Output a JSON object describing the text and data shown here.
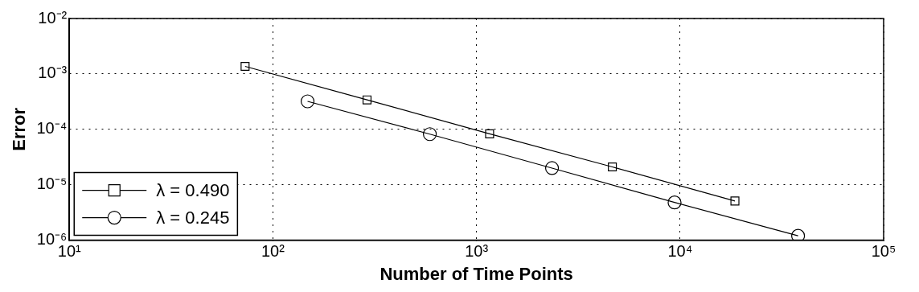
{
  "chart_data": {
    "type": "line",
    "xlabel": "Number of Time Points",
    "ylabel": "Error",
    "log": "xy",
    "grid": true,
    "legend": "bottom left",
    "xlim": [
      10,
      100000
    ],
    "xticks": [
      {
        "value": 10,
        "label": "10¹"
      },
      {
        "value": 100,
        "label": "10²"
      },
      {
        "value": 1000,
        "label": "10³"
      },
      {
        "value": 10000,
        "label": "10⁴"
      },
      {
        "value": 100000,
        "label": "10⁵"
      }
    ],
    "ylim": [
      1e-06,
      0.01
    ],
    "yticks": [
      {
        "value": 1e-06,
        "label": "10⁻⁶"
      },
      {
        "value": 1e-05,
        "label": "10⁻⁵"
      },
      {
        "value": 0.0001,
        "label": "10⁻⁴"
      },
      {
        "value": 0.001,
        "label": "10⁻³"
      },
      {
        "value": 0.01,
        "label": "10⁻²"
      }
    ],
    "series": [
      {
        "name": "λ = 0.490",
        "color": "#000000",
        "marker": "square",
        "x": [
          73,
          290,
          1160,
          4650,
          18600
        ],
        "values": [
          0.00137,
          0.00034,
          8.3e-05,
          2.1e-05,
          5.1e-06
        ]
      },
      {
        "name": "λ = 0.245",
        "color": "#000000",
        "marker": "circle",
        "x": [
          148,
          590,
          2350,
          9400,
          38000
        ],
        "values": [
          0.00032,
          8.2e-05,
          2e-05,
          4.8e-06,
          1.2e-06
        ]
      }
    ]
  }
}
